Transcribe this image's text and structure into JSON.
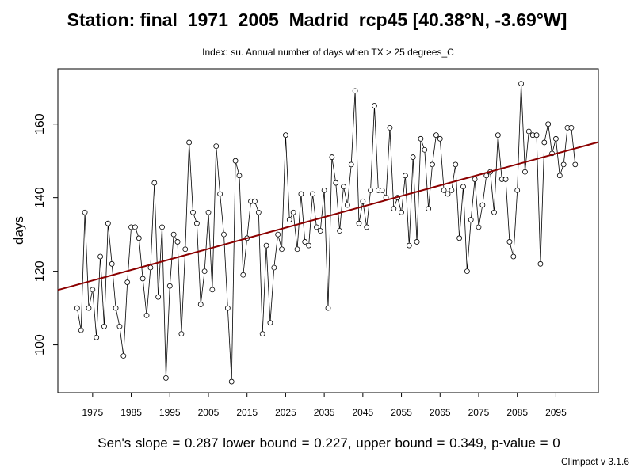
{
  "header": {
    "title": "Station: final_1971_2005_Madrid_rcp45 [40.38°N, -3.69°W]",
    "subtitle": "Index: su. Annual number of days when TX > 25 degrees_C"
  },
  "footer": {
    "stats": "Sen's slope = 0.287   lower bound = 0.227,   upper bound = 0.349,   p-value = 0",
    "credit": "Climpact v 3.1.6"
  },
  "colors": {
    "trend": "#8b0000",
    "series": "#000000",
    "background": "#ffffff"
  },
  "chart_data": {
    "type": "line",
    "title": "Station: final_1971_2005_Madrid_rcp45 [40.38°N, -3.69°W]",
    "subtitle": "Index: su. Annual number of days when TX > 25 degrees_C",
    "xlabel": "",
    "ylabel": "days",
    "xlim": [
      1966,
      2106
    ],
    "ylim": [
      87,
      175
    ],
    "x_ticks": [
      1975,
      1985,
      1995,
      2005,
      2015,
      2025,
      2035,
      2045,
      2055,
      2065,
      2075,
      2085,
      2095
    ],
    "y_ticks": [
      100,
      120,
      140,
      160
    ],
    "grid": false,
    "x": [
      1971,
      1972,
      1973,
      1974,
      1975,
      1976,
      1977,
      1978,
      1979,
      1980,
      1981,
      1982,
      1983,
      1984,
      1985,
      1986,
      1987,
      1988,
      1989,
      1990,
      1991,
      1992,
      1993,
      1994,
      1995,
      1996,
      1997,
      1998,
      1999,
      2000,
      2001,
      2002,
      2003,
      2004,
      2005,
      2006,
      2007,
      2008,
      2009,
      2010,
      2011,
      2012,
      2013,
      2014,
      2015,
      2016,
      2017,
      2018,
      2019,
      2020,
      2021,
      2022,
      2023,
      2024,
      2025,
      2026,
      2027,
      2028,
      2029,
      2030,
      2031,
      2032,
      2033,
      2034,
      2035,
      2036,
      2037,
      2038,
      2039,
      2040,
      2041,
      2042,
      2043,
      2044,
      2045,
      2046,
      2047,
      2048,
      2049,
      2050,
      2051,
      2052,
      2053,
      2054,
      2055,
      2056,
      2057,
      2058,
      2059,
      2060,
      2061,
      2062,
      2063,
      2064,
      2065,
      2066,
      2067,
      2068,
      2069,
      2070,
      2071,
      2072,
      2073,
      2074,
      2075,
      2076,
      2077,
      2078,
      2079,
      2080,
      2081,
      2082,
      2083,
      2084,
      2085,
      2086,
      2087,
      2088,
      2089,
      2090,
      2091,
      2092,
      2093,
      2094,
      2095,
      2096,
      2097,
      2098,
      2099,
      2100
    ],
    "series": [
      {
        "values": [
          110,
          104,
          136,
          110,
          115,
          102,
          124,
          105,
          133,
          122,
          110,
          105,
          97,
          117,
          132,
          132,
          129,
          118,
          108,
          121,
          144,
          113,
          132,
          91,
          116,
          130,
          128,
          103,
          126,
          155,
          136,
          133,
          111,
          120,
          136,
          115,
          154,
          141,
          130,
          110,
          90,
          150,
          146,
          119,
          129,
          139,
          139,
          136,
          103,
          127,
          106,
          121,
          130,
          126,
          157,
          134,
          136,
          126,
          141,
          128,
          127,
          141,
          132,
          131,
          142,
          110,
          151,
          144,
          131,
          143,
          138,
          149,
          169,
          133,
          139,
          132,
          142,
          165,
          142,
          142,
          140,
          159,
          137,
          140,
          136,
          146,
          127,
          151,
          128,
          156,
          153,
          137,
          149,
          157,
          156,
          142,
          141,
          142,
          149,
          129,
          143,
          120,
          134,
          145,
          132,
          138,
          146,
          147,
          136,
          157,
          145,
          145,
          128,
          124,
          142,
          171,
          147,
          158,
          157,
          157,
          122,
          155,
          160,
          152,
          156,
          146,
          149,
          159,
          159,
          149
        ]
      }
    ],
    "trend": {
      "slope": 0.287,
      "lower_bound": 0.227,
      "upper_bound": 0.349,
      "p_value": 0,
      "start": [
        1966,
        114.9
      ],
      "end": [
        2106,
        155.1
      ]
    }
  }
}
